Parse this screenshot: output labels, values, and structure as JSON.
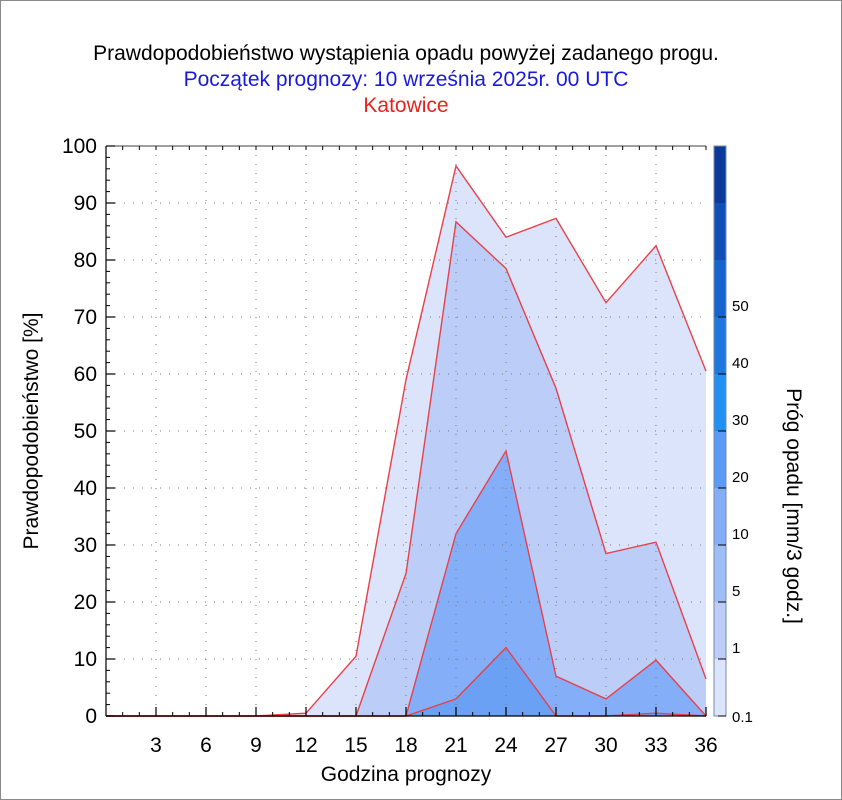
{
  "title": "Prawdopodobieństwo wystąpienia opadu powyżej zadanego progu.",
  "subtitle": "Początek prognozy: 10 września 2025r. 00 UTC",
  "location": "Katowice",
  "colors": {
    "title": "#000000",
    "subtitle": "#1a1adf",
    "location": "#e8231f",
    "series_line": "#e8414a"
  },
  "chart_data": {
    "type": "area",
    "xlabel": "Godzina prognozy",
    "ylabel": "Prawdopodobieństwo [%]",
    "xlim": [
      0,
      36
    ],
    "ylim": [
      0,
      100
    ],
    "x_ticks": [
      3,
      6,
      9,
      12,
      15,
      18,
      21,
      24,
      27,
      30,
      33,
      36
    ],
    "y_ticks": [
      0,
      10,
      20,
      30,
      40,
      50,
      60,
      70,
      80,
      90,
      100
    ],
    "grid": "dotted",
    "x": [
      0,
      3,
      6,
      9,
      12,
      15,
      18,
      21,
      24,
      27,
      30,
      33,
      36
    ],
    "series": [
      {
        "threshold": 0.1,
        "color": "#dbe4fb",
        "values": [
          0,
          0,
          0,
          0,
          0.5,
          10.5,
          59,
          96.5,
          84,
          87.3,
          72.5,
          82.5,
          60.5
        ]
      },
      {
        "threshold": 1,
        "color": "#bccdf8",
        "values": [
          0,
          0,
          0,
          0,
          0,
          0,
          25,
          86.7,
          78.5,
          57.5,
          28.5,
          30.5,
          6.5
        ]
      },
      {
        "threshold": 5,
        "color": "#85aef8",
        "values": [
          0,
          0,
          0,
          0,
          0,
          0,
          0,
          32,
          46.5,
          7,
          3,
          9.8,
          0
        ]
      },
      {
        "threshold": 10,
        "color": "#6ba1f4",
        "values": [
          0,
          0,
          0,
          0,
          0,
          0,
          0,
          3,
          12,
          0,
          0,
          0.5,
          0
        ]
      }
    ],
    "colorbar": {
      "label": "Próg opadu [mm/3 godz.]",
      "ticks": [
        "0.1",
        "1",
        "5",
        "10",
        "20",
        "30",
        "40",
        "50"
      ],
      "colors": [
        "#dbe4fb",
        "#bccdf8",
        "#9ebef8",
        "#85aef8",
        "#5b9bf5",
        "#2090f2",
        "#1c78de",
        "#1563cc",
        "#0f4fb6",
        "#0b3a9a"
      ]
    }
  }
}
